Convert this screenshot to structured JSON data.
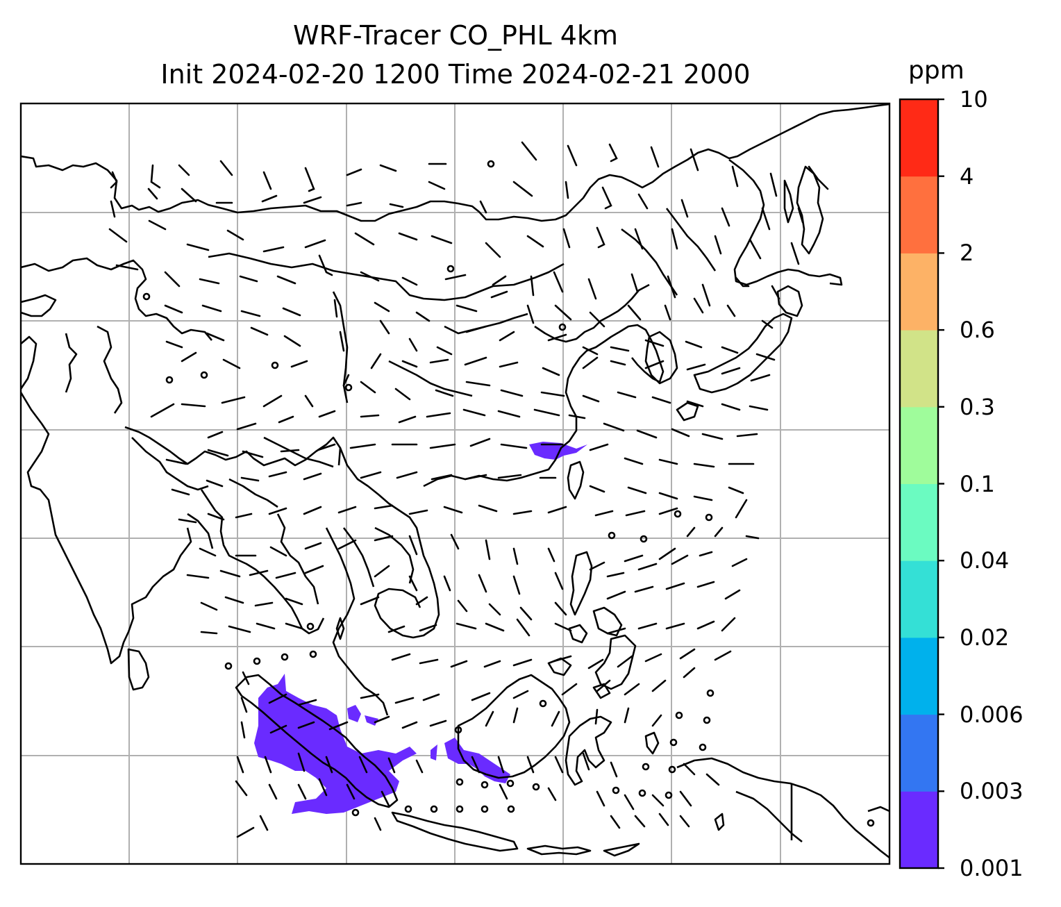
{
  "title": {
    "line1": "WRF-Tracer CO_PHL 4km",
    "line2": "Init 2024-02-20 1200 Time 2024-02-21 2000"
  },
  "colorbar": {
    "unit": "ppm",
    "levels": [
      "0.001",
      "0.003",
      "0.006",
      "0.02",
      "0.04",
      "0.1",
      "0.3",
      "0.6",
      "2",
      "4",
      "10"
    ],
    "colors": [
      "#6a2bff",
      "#3376f2",
      "#00b1ec",
      "#34e0d6",
      "#6bfbc1",
      "#9ffc9b",
      "#d1e388",
      "#fdb266",
      "#ff703e",
      "#ff2a16"
    ]
  },
  "map": {
    "tracer_color": "#6a2bff",
    "coastline_color": "#000000",
    "gridline_color": "#b0b0b0"
  }
}
